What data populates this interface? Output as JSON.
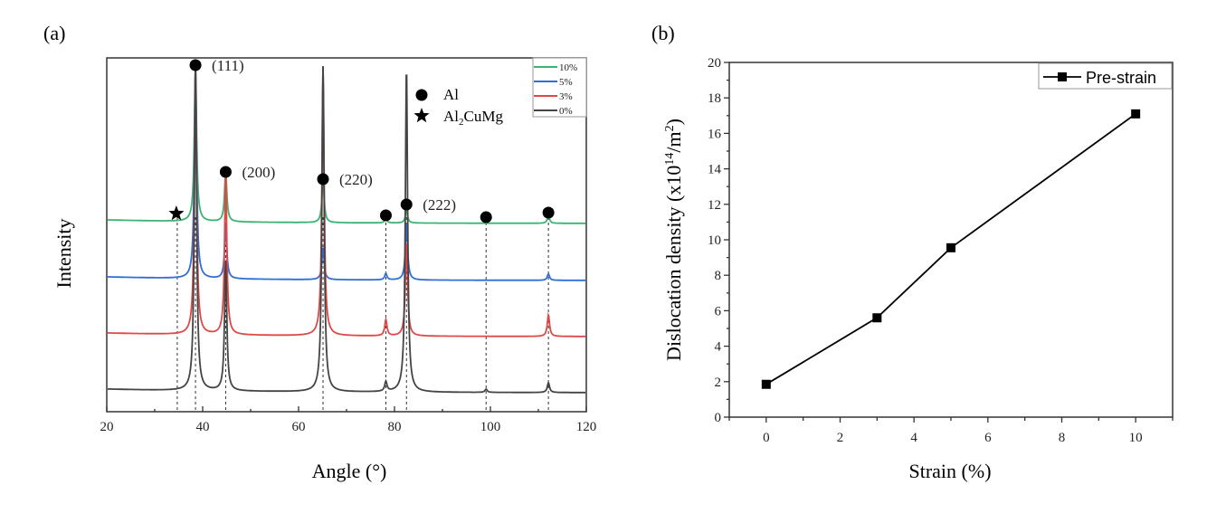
{
  "chart_data": [
    {
      "panel_label": "(a)",
      "type": "line",
      "title": "",
      "xlabel": "Angle (°)",
      "ylabel": "Intensity",
      "xlim": [
        20,
        120
      ],
      "x_ticks": [
        20,
        40,
        60,
        80,
        100,
        120
      ],
      "y_ticks": [],
      "grid": false,
      "legend_placement": "top-right",
      "series": [
        {
          "name": "10%",
          "color": "#3cb371",
          "offset_rank": 3,
          "peaks": [
            {
              "x": 38.5,
              "h": 1.0
            },
            {
              "x": 44.8,
              "h": 0.33
            },
            {
              "x": 65.1,
              "h": 0.28
            },
            {
              "x": 78.2,
              "h": 0.03
            },
            {
              "x": 82.5,
              "h": 0.08
            },
            {
              "x": 112.1,
              "h": 0.05
            }
          ]
        },
        {
          "name": "5%",
          "color": "#2f6fd6",
          "offset_rank": 2,
          "peaks": [
            {
              "x": 38.5,
              "h": 1.0
            },
            {
              "x": 44.8,
              "h": 0.25
            },
            {
              "x": 65.1,
              "h": 0.15
            },
            {
              "x": 78.2,
              "h": 0.03
            },
            {
              "x": 82.5,
              "h": 0.27
            },
            {
              "x": 112.1,
              "h": 0.03
            }
          ]
        },
        {
          "name": "3%",
          "color": "#e04848",
          "offset_rank": 1,
          "peaks": [
            {
              "x": 38.5,
              "h": 1.0
            },
            {
              "x": 44.8,
              "h": 0.6
            },
            {
              "x": 65.1,
              "h": 1.0
            },
            {
              "x": 78.2,
              "h": 0.06
            },
            {
              "x": 82.5,
              "h": 0.35
            },
            {
              "x": 112.1,
              "h": 0.08
            }
          ]
        },
        {
          "name": "0%",
          "color": "#444444",
          "offset_rank": 0,
          "peaks": [
            {
              "x": 38.5,
              "h": 1.0
            },
            {
              "x": 44.8,
              "h": 0.4
            },
            {
              "x": 65.1,
              "h": 1.0
            },
            {
              "x": 78.2,
              "h": 0.03
            },
            {
              "x": 82.5,
              "h": 1.0
            },
            {
              "x": 99.1,
              "h": 0.01
            },
            {
              "x": 112.1,
              "h": 0.03
            }
          ]
        }
      ],
      "reference_lines_x": [
        34.7,
        38.5,
        44.8,
        65.1,
        78.2,
        82.5,
        99.1,
        112.1
      ],
      "phase_legend": [
        {
          "symbol": "circle",
          "label": "Al"
        },
        {
          "symbol": "star",
          "label_main": "Al",
          "label_sub": "2",
          "label_rest": "CuMg"
        }
      ],
      "annotations": [
        {
          "x": 38.5,
          "symbol": "circle",
          "label": "(111)"
        },
        {
          "x": 44.8,
          "symbol": "circle",
          "label": "(200)"
        },
        {
          "x": 65.1,
          "symbol": "circle",
          "label": "(220)"
        },
        {
          "x": 78.2,
          "symbol": "circle",
          "label": ""
        },
        {
          "x": 82.5,
          "symbol": "circle",
          "label": "(222)"
        },
        {
          "x": 99.1,
          "symbol": "circle",
          "label": ""
        },
        {
          "x": 112.1,
          "symbol": "circle",
          "label": ""
        },
        {
          "x": 34.7,
          "symbol": "star",
          "label": ""
        }
      ]
    },
    {
      "panel_label": "(b)",
      "type": "line",
      "title": "",
      "xlabel": "Strain (%)",
      "ylabel_main": "Dislocation density (x10",
      "ylabel_sup1": "14",
      "ylabel_mid": "/m",
      "ylabel_sup2": "2",
      "ylabel_end": ")",
      "xlim": [
        -1,
        11
      ],
      "ylim": [
        0,
        20
      ],
      "x_ticks": [
        0,
        2,
        4,
        6,
        8,
        10
      ],
      "y_ticks": [
        0,
        2,
        4,
        6,
        8,
        10,
        12,
        14,
        16,
        18,
        20
      ],
      "grid": false,
      "legend_placement": "top-right",
      "series": [
        {
          "name": "Pre-strain",
          "color": "#000000",
          "marker": "square",
          "x": [
            0,
            3,
            5,
            10
          ],
          "y": [
            1.85,
            5.6,
            9.55,
            17.1
          ]
        }
      ]
    }
  ]
}
